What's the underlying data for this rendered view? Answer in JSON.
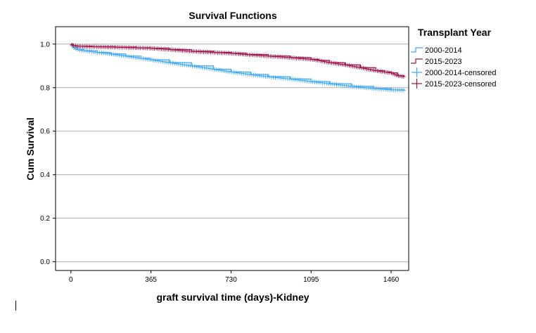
{
  "chart_data": {
    "type": "line",
    "title": "Survival Functions",
    "xlabel": "graft survival time (days)-Kidney",
    "ylabel": "Cum Survival",
    "xlim": [
      -70,
      1540
    ],
    "ylim": [
      -0.04,
      1.08
    ],
    "x_ticks": [
      0,
      365,
      730,
      1095,
      1460
    ],
    "y_ticks": [
      0.0,
      0.2,
      0.4,
      0.6,
      0.8,
      1.0
    ],
    "y_tick_labels": [
      "0.0",
      "0.2",
      "0.4",
      "0.6",
      "0.8",
      "1.0"
    ],
    "grid": "horizontal",
    "legend": {
      "title": "Transplant Year",
      "position": "right",
      "entries": [
        "2000-2014",
        "2015-2023",
        "2000-2014-censored",
        "2015-2023-censored"
      ]
    },
    "series": [
      {
        "name": "2000-2014",
        "color": "#3FA9F5",
        "x": [
          0,
          10,
          30,
          60,
          120,
          180,
          250,
          320,
          365,
          450,
          550,
          650,
          730,
          820,
          900,
          1000,
          1095,
          1180,
          1280,
          1380,
          1460,
          1520
        ],
        "y": [
          1.0,
          0.985,
          0.975,
          0.97,
          0.962,
          0.955,
          0.945,
          0.935,
          0.928,
          0.915,
          0.9,
          0.885,
          0.872,
          0.86,
          0.85,
          0.84,
          0.828,
          0.818,
          0.806,
          0.796,
          0.79,
          0.788
        ]
      },
      {
        "name": "2015-2023",
        "color": "#A0144A",
        "x": [
          0,
          10,
          30,
          100,
          200,
          300,
          365,
          450,
          550,
          650,
          730,
          800,
          900,
          1000,
          1095,
          1130,
          1180,
          1250,
          1320,
          1390,
          1430,
          1460,
          1490,
          1520
        ],
        "y": [
          1.0,
          0.993,
          0.99,
          0.988,
          0.986,
          0.983,
          0.981,
          0.975,
          0.967,
          0.962,
          0.958,
          0.952,
          0.945,
          0.938,
          0.93,
          0.925,
          0.915,
          0.905,
          0.892,
          0.878,
          0.872,
          0.868,
          0.855,
          0.85
        ]
      }
    ]
  }
}
